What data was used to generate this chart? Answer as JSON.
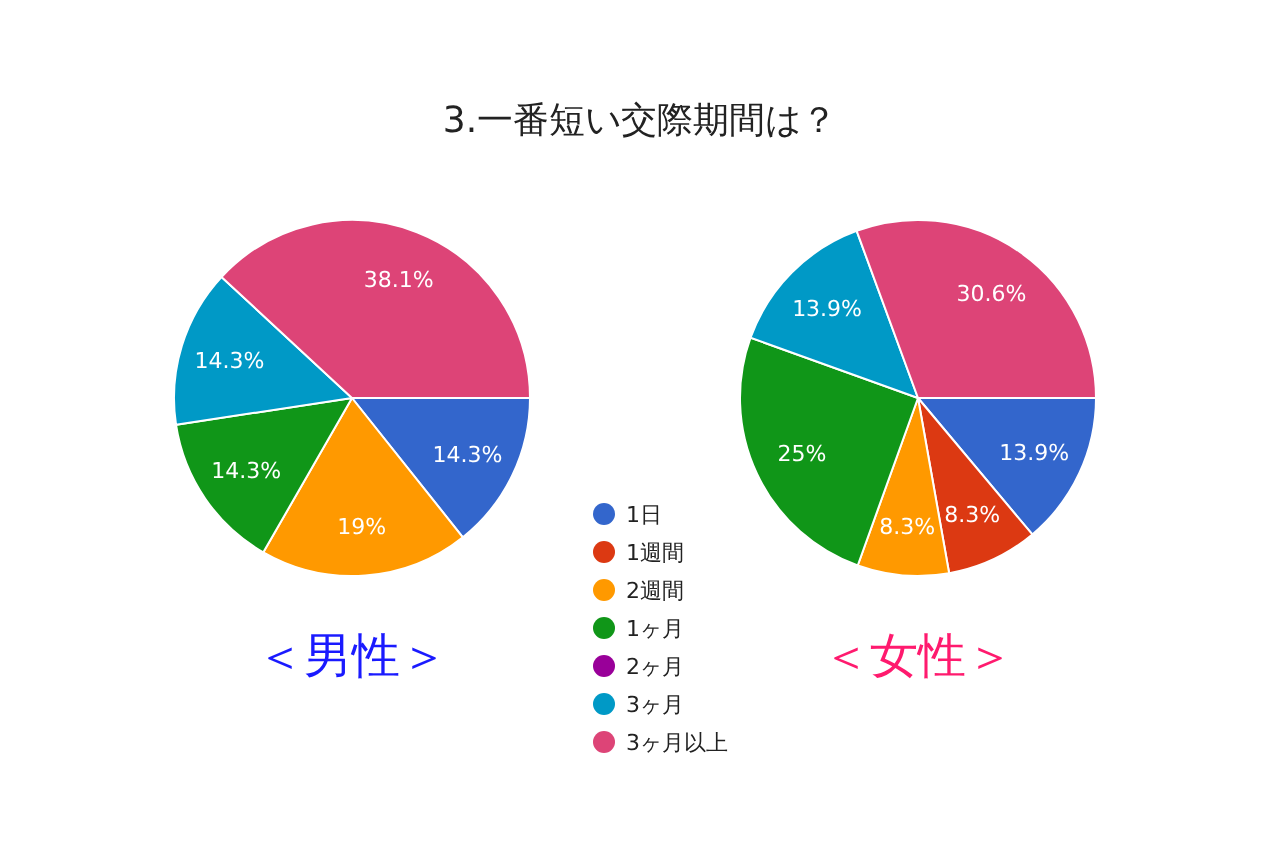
{
  "chart_data": {
    "type": "pie",
    "title": "3.一番短い交際期間は？",
    "categories": [
      "1日",
      "1週間",
      "2週間",
      "1ヶ月",
      "2ヶ月",
      "3ヶ月",
      "3ヶ月以上"
    ],
    "colors": [
      "#3366cc",
      "#dc3912",
      "#ff9900",
      "#109618",
      "#990099",
      "#0099c6",
      "#dd4477"
    ],
    "legend": "bottom",
    "series": [
      {
        "name": "＜男性＞",
        "values": [
          14.3,
          0,
          19,
          14.3,
          0,
          14.3,
          38.1
        ],
        "value_labels": [
          "14.3%",
          null,
          "19%",
          "14.3%",
          null,
          "14.3%",
          "38.1%"
        ]
      },
      {
        "name": "＜女性＞",
        "values": [
          13.9,
          8.3,
          8.3,
          25,
          0,
          13.9,
          30.6
        ],
        "value_labels": [
          "13.9%",
          "8.3%",
          "8.3%",
          "25%",
          null,
          "13.9%",
          "30.6%"
        ]
      }
    ]
  }
}
